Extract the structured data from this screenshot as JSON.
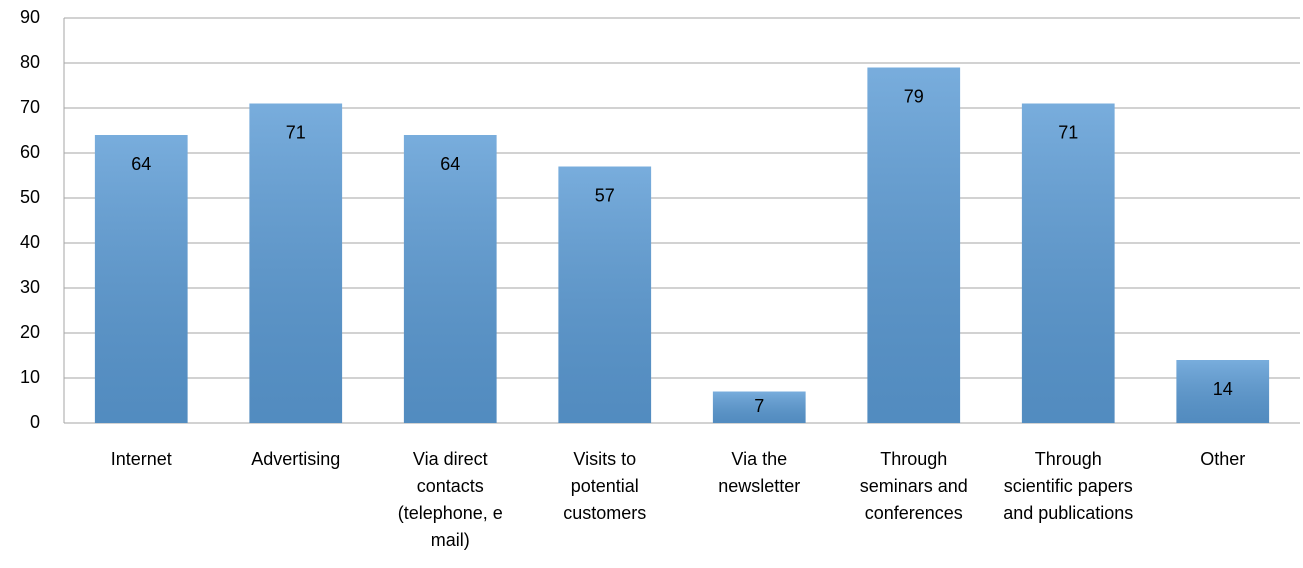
{
  "chart_data": {
    "type": "bar",
    "categories": [
      "Internet",
      "Advertising",
      "Via direct contacts (telephone, e mail)",
      "Visits to potential customers",
      "Via the newsletter",
      "Through seminars and conferences",
      "Through scientific papers and publications",
      "Other"
    ],
    "values": [
      64,
      71,
      64,
      57,
      7,
      79,
      71,
      14
    ],
    "color": "#5b9bd5",
    "ylim": [
      0,
      90
    ],
    "yticks": [
      0,
      10,
      20,
      30,
      40,
      50,
      60,
      70,
      80,
      90
    ],
    "grid": true
  }
}
